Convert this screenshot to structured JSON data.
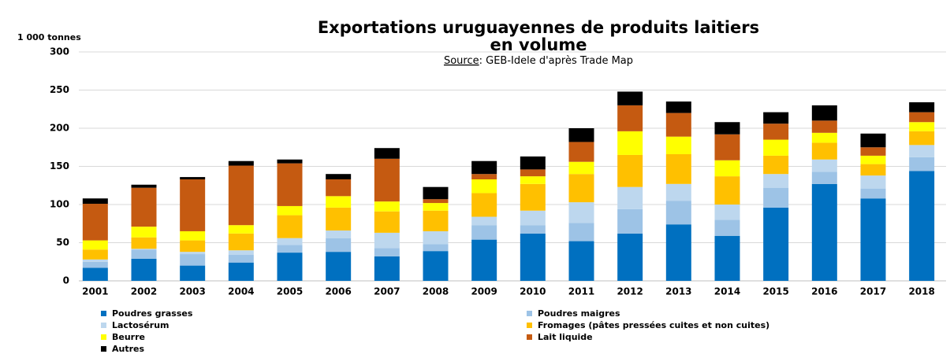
{
  "chart_data": {
    "type": "stacked_bar",
    "title": [
      "Exportations uruguayennes de produits laitiers",
      "en volume"
    ],
    "subtitle_label": "Source",
    "subtitle": ": GEB-Idele d'après Trade Map",
    "y_label": "1 000 tonnes",
    "categories": [
      "2001",
      "2002",
      "2003",
      "2004",
      "2005",
      "2006",
      "2007",
      "2008",
      "2009",
      "2010",
      "2011",
      "2012",
      "2013",
      "2014",
      "2015",
      "2016",
      "2017",
      "2018"
    ],
    "series": [
      {
        "name": "Poudres grasses",
        "color": "#0070c0",
        "values": [
          17,
          29,
          20,
          24,
          37,
          38,
          32,
          39,
          54,
          62,
          52,
          62,
          74,
          59,
          96,
          127,
          108,
          144
        ]
      },
      {
        "name": "Poudres maigres",
        "color": "#9dc3e6",
        "values": [
          8,
          12,
          15,
          10,
          10,
          18,
          11,
          9,
          19,
          11,
          24,
          32,
          31,
          21,
          26,
          16,
          13,
          18
        ]
      },
      {
        "name": "Lactosérum",
        "color": "#bdd7ee",
        "values": [
          3,
          1,
          3,
          6,
          9,
          10,
          20,
          17,
          11,
          19,
          27,
          29,
          22,
          20,
          18,
          16,
          17,
          16
        ]
      },
      {
        "name": "Fromages (pâtes pressées cuites et non cuites)",
        "color": "#ffc000",
        "values": [
          13,
          15,
          15,
          22,
          30,
          30,
          28,
          27,
          31,
          35,
          37,
          42,
          39,
          37,
          24,
          22,
          15,
          18
        ]
      },
      {
        "name": "Beurre",
        "color": "#ffff00",
        "values": [
          12,
          14,
          12,
          11,
          12,
          15,
          13,
          10,
          18,
          10,
          16,
          31,
          23,
          21,
          21,
          13,
          11,
          12
        ]
      },
      {
        "name": "Lait liquide",
        "color": "#c55a11",
        "values": [
          48,
          51,
          68,
          78,
          56,
          22,
          56,
          5,
          7,
          9,
          26,
          34,
          31,
          34,
          21,
          16,
          11,
          13
        ]
      },
      {
        "name": "Autres",
        "color": "#000000",
        "values": [
          7,
          4,
          3,
          6,
          5,
          7,
          14,
          16,
          17,
          17,
          18,
          18,
          15,
          16,
          15,
          20,
          18,
          13
        ]
      }
    ],
    "ylim": [
      0,
      300
    ],
    "yticks": [
      0,
      50,
      100,
      150,
      200,
      250,
      300
    ],
    "grid": true,
    "legend": "bottom"
  }
}
